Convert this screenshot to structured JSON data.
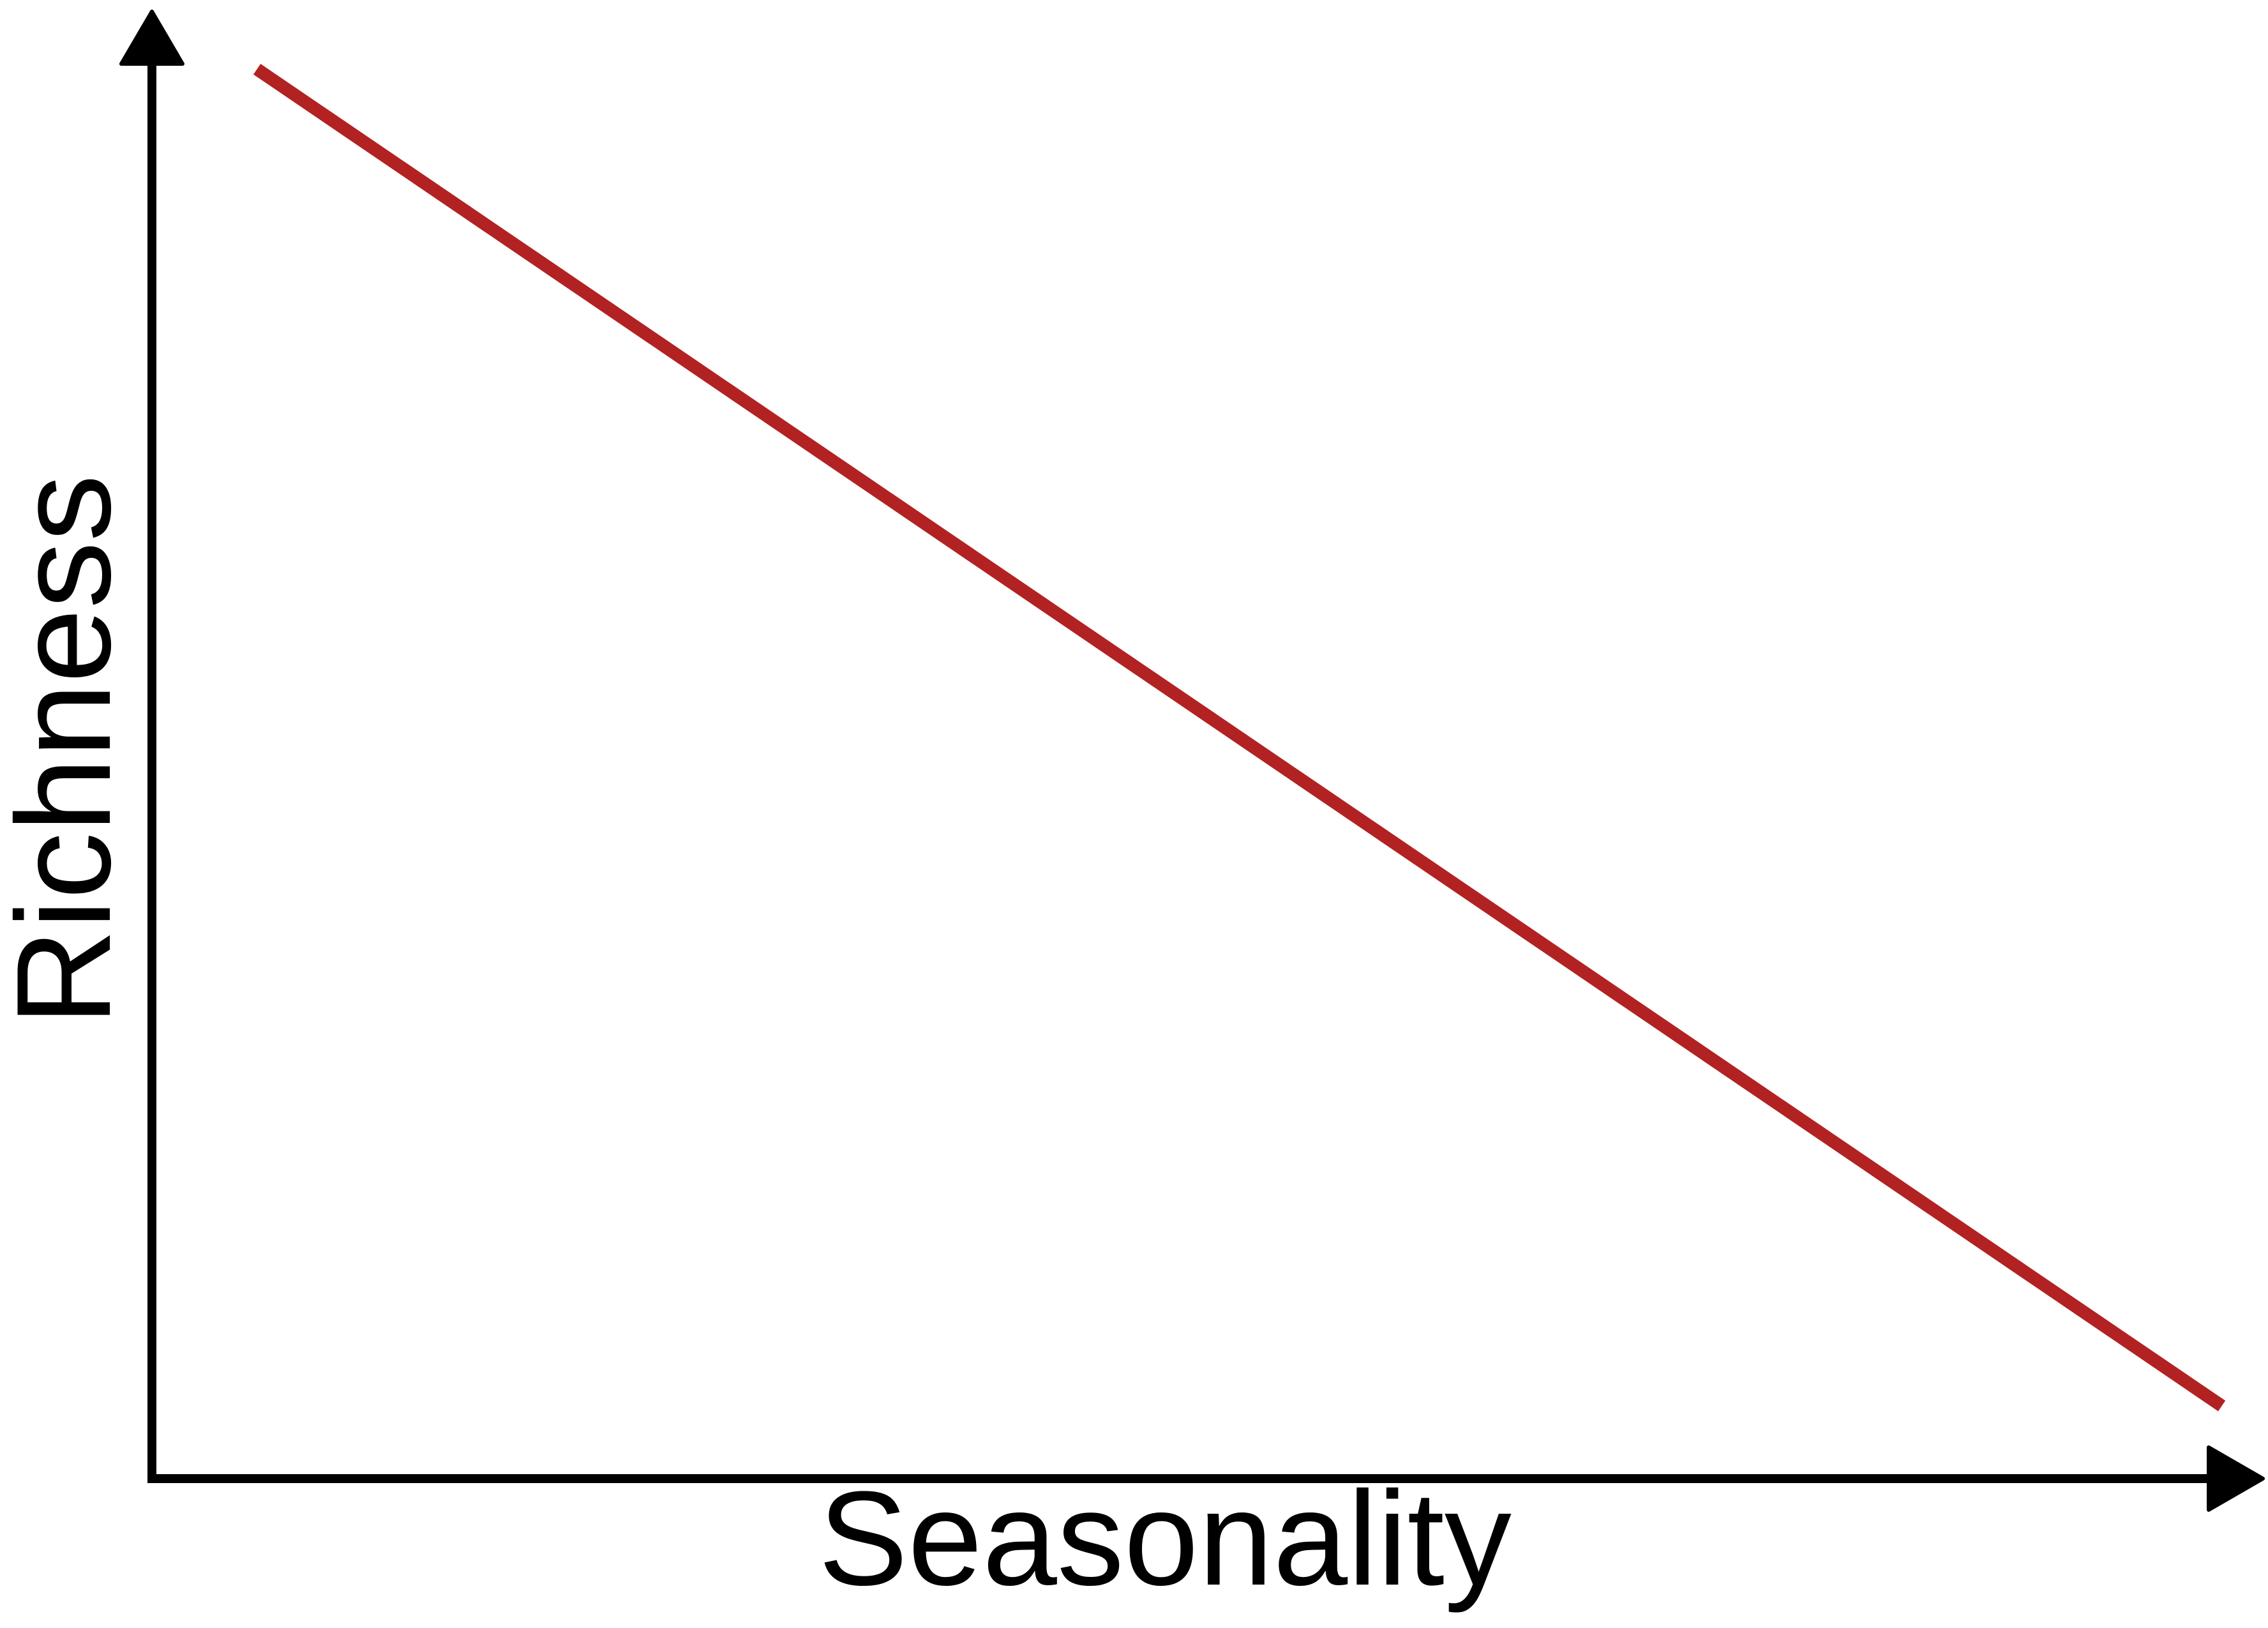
{
  "chart_data": {
    "type": "line",
    "title": "",
    "xlabel": "Seasonality",
    "ylabel": "Richness",
    "xlim": [
      0,
      1
    ],
    "ylim": [
      0,
      1
    ],
    "grid": false,
    "ticks_shown": false,
    "series": [
      {
        "color": "#b22222",
        "x": [
          0.05,
          0.985
        ],
        "y": [
          0.97,
          0.05
        ]
      }
    ]
  }
}
